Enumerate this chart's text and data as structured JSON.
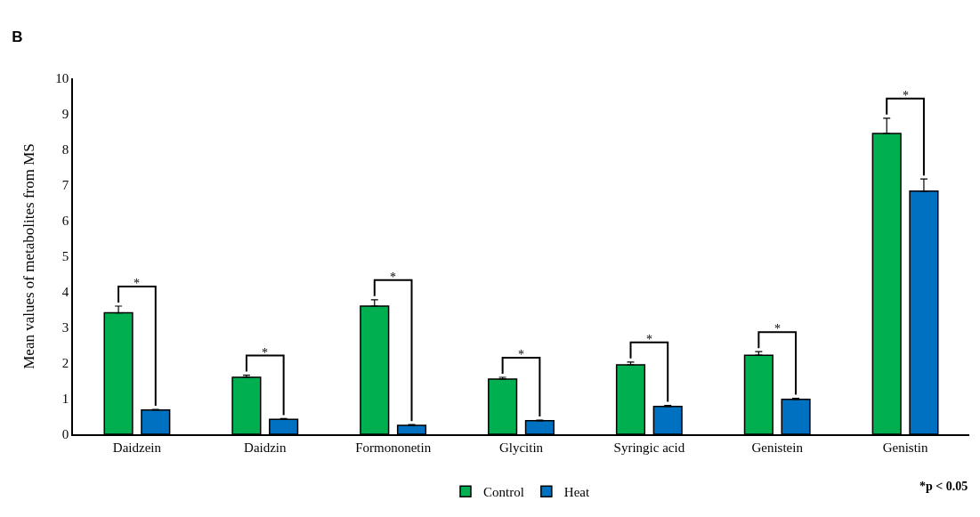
{
  "chart_data": {
    "type": "bar",
    "title": "B",
    "ylabel": "Mean values of metabolites from MS",
    "categories": [
      "Daidzein",
      "Daidzin",
      "Formononetin",
      "Glycitin",
      "Syringic acid",
      "Genistein",
      "Genistin"
    ],
    "series": [
      {
        "name": "Control",
        "color": "#00b050",
        "values": [
          3.41,
          1.6,
          3.6,
          1.55,
          1.95,
          2.22,
          8.45
        ],
        "errors": [
          [
            3.41,
            3.6
          ],
          [
            1.6,
            1.66
          ],
          [
            3.6,
            3.78
          ],
          [
            1.55,
            1.6
          ],
          [
            1.95,
            2.03
          ],
          [
            2.22,
            2.32
          ],
          [
            8.45,
            8.88
          ]
        ]
      },
      {
        "name": "Heat",
        "color": "#0070c0",
        "values": [
          0.68,
          0.42,
          0.25,
          0.38,
          0.78,
          0.98,
          6.83
        ],
        "errors": [
          [
            0.68,
            0.7
          ],
          [
            0.42,
            0.44
          ],
          [
            0.25,
            0.27
          ],
          [
            0.38,
            0.4
          ],
          [
            0.78,
            0.81
          ],
          [
            0.98,
            1.01
          ],
          [
            6.83,
            7.17
          ]
        ]
      }
    ],
    "ylim": [
      0,
      10
    ],
    "yticks": [
      0,
      1,
      2,
      3,
      4,
      5,
      6,
      7,
      8,
      9,
      10
    ],
    "grid": false,
    "legend": "bottom",
    "annotations": [
      "*",
      "*",
      "*",
      "*",
      "*",
      "*",
      "*",
      "*p < 0.05"
    ]
  }
}
